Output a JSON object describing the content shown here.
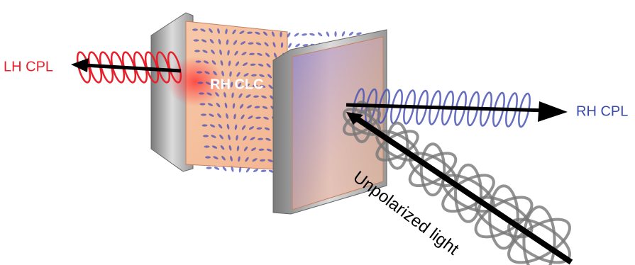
{
  "labels": {
    "lh_cpl": "LH CPL",
    "rh_clc": "RH CLC",
    "rh_cpl": "RH CPL",
    "unpolarized": "Unpolarized light"
  }
}
